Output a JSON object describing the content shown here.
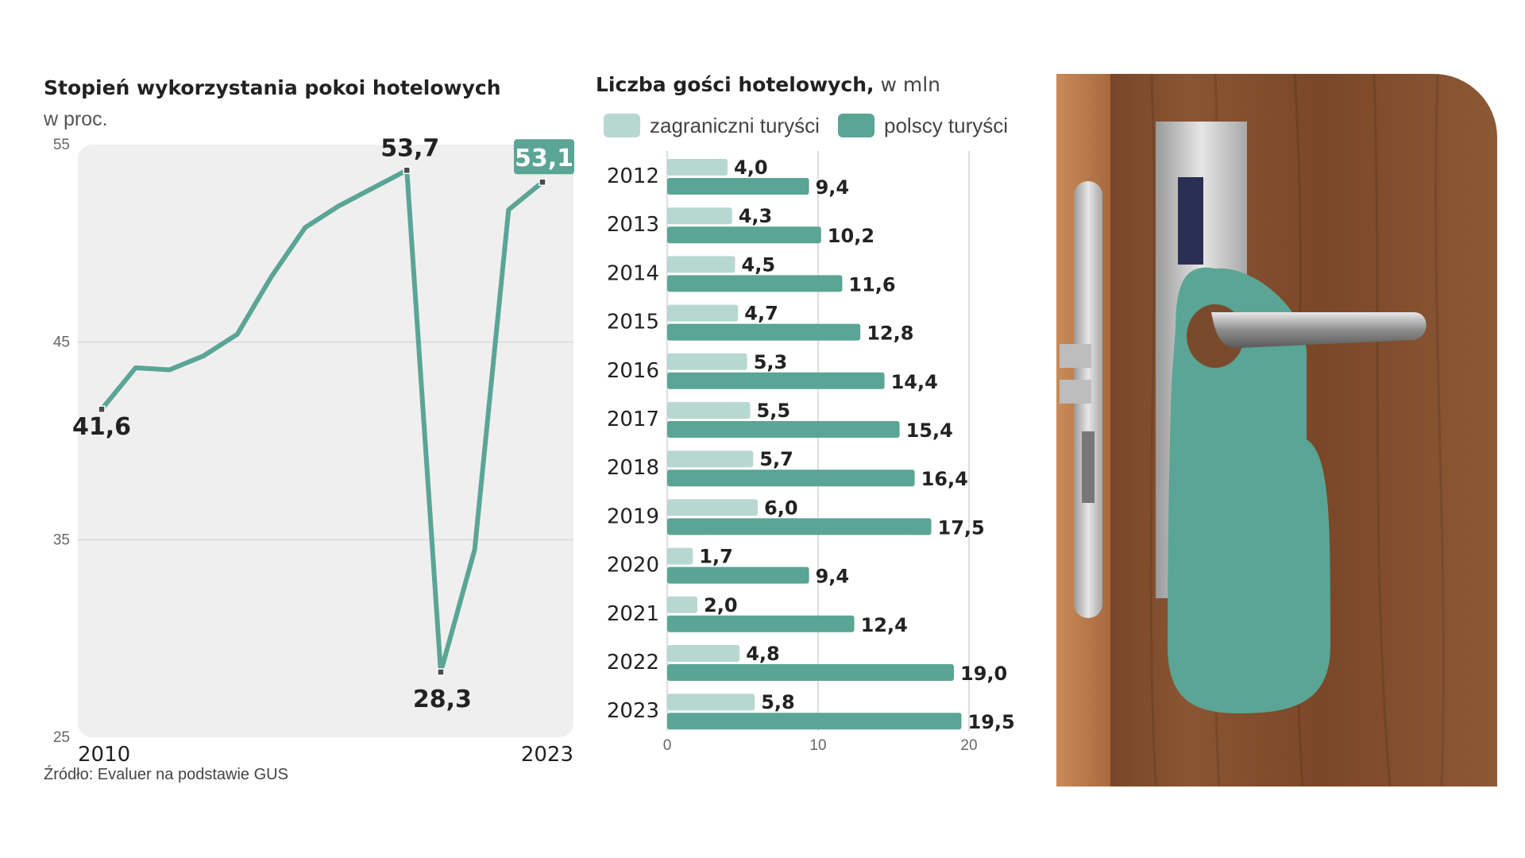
{
  "colors": {
    "line": "#5aa595",
    "dark_bar": "#5aa595",
    "light_bar": "#b7d8d0",
    "plot_bg": "#efefef",
    "door": "#7a4a2c"
  },
  "left_chart": {
    "title": "Stopień wykorzystania pokoi hotelowych",
    "subtitle": "w proc.",
    "source": "Źródło: Evaluer na podstawie GUS"
  },
  "right_chart": {
    "title_bold": "Liczba gości hotelowych,",
    "title_light": " w mln",
    "legend": [
      {
        "label": "zagraniczni turyści",
        "color": "#b7d8d0"
      },
      {
        "label": "polscy turyści",
        "color": "#5aa595"
      }
    ]
  },
  "chart_data": [
    {
      "type": "line",
      "title": "Stopień wykorzystania pokoi hotelowych",
      "subtitle": "w proc.",
      "x_labels": [
        "2010",
        "2023"
      ],
      "x": [
        2010,
        2011,
        2012,
        2013,
        2014,
        2015,
        2016,
        2017,
        2018,
        2019,
        2020,
        2021,
        2022,
        2023
      ],
      "values": [
        41.6,
        43.7,
        43.6,
        44.3,
        45.4,
        48.3,
        50.8,
        51.9,
        52.8,
        53.7,
        28.3,
        34.5,
        51.7,
        53.1
      ],
      "point_labels": [
        {
          "x": 2010,
          "text": "41,6"
        },
        {
          "x": 2019,
          "text": "53,7"
        },
        {
          "x": 2020,
          "text": "28,3"
        },
        {
          "x": 2023,
          "text": "53,1"
        }
      ],
      "ylim": [
        25,
        55
      ],
      "yticks": [
        "25",
        "35",
        "45",
        "55"
      ],
      "grid": true
    },
    {
      "type": "bar",
      "orientation": "horizontal",
      "title": "Liczba gości hotelowych, w mln",
      "categories": [
        "2012",
        "2013",
        "2014",
        "2015",
        "2016",
        "2017",
        "2018",
        "2019",
        "2020",
        "2021",
        "2022",
        "2023"
      ],
      "series": [
        {
          "name": "zagraniczni turyści",
          "values": [
            4.0,
            4.3,
            4.5,
            4.7,
            5.3,
            5.5,
            5.7,
            6.0,
            1.7,
            2.0,
            4.8,
            5.8
          ],
          "labels": [
            "4,0",
            "4,3",
            "4,5",
            "4,7",
            "5,3",
            "5,5",
            "5,7",
            "6,0",
            "1,7",
            "2,0",
            "4,8",
            "5,8"
          ]
        },
        {
          "name": "polscy turyści",
          "values": [
            9.4,
            10.2,
            11.6,
            12.8,
            14.4,
            15.4,
            16.4,
            17.5,
            9.4,
            12.4,
            19.0,
            19.5
          ],
          "labels": [
            "9,4",
            "10,2",
            "11,6",
            "12,8",
            "14,4",
            "15,4",
            "16,4",
            "17,5",
            "9,4",
            "12,4",
            "19,0",
            "19,5"
          ]
        }
      ],
      "xticks": [
        "0",
        "10",
        "20"
      ],
      "xlim": [
        0,
        20
      ],
      "grid": true
    }
  ]
}
